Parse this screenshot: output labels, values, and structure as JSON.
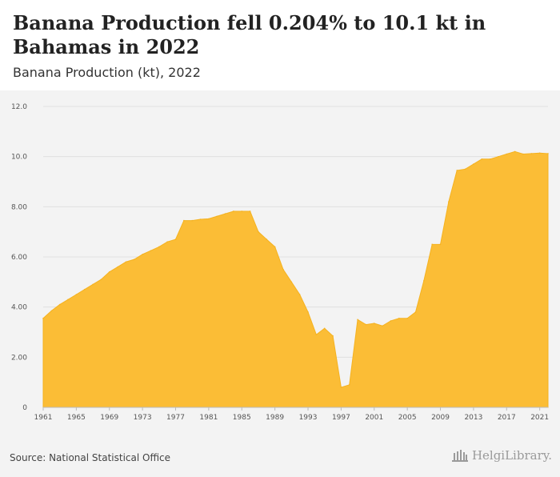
{
  "header": {
    "title": "Banana Production fell 0.204% to 10.1 kt in Bahamas in 2022",
    "subtitle": "Banana Production (kt), 2022"
  },
  "footer": {
    "source": "Source: National Statistical Office",
    "logo_text": "HelgiLibrary."
  },
  "colors": {
    "area_fill": "#fbbd36",
    "area_stroke": "#f5b21f",
    "grid": "#e0e0e0",
    "axis_text": "#555555",
    "logo": "#9a9a9a"
  },
  "chart_data": {
    "type": "area",
    "title": "Banana Production fell 0.204% to 10.1 kt in Bahamas in 2022",
    "subtitle": "Banana Production (kt), 2022",
    "ylim": [
      0,
      12
    ],
    "yticks": [
      0,
      2,
      4,
      6,
      8,
      10,
      12
    ],
    "ytick_labels": [
      "0",
      "2.00",
      "4.00",
      "6.00",
      "8.00",
      "10.0",
      "12.0"
    ],
    "xlim": [
      1961,
      2022
    ],
    "xticks": [
      1961,
      1965,
      1969,
      1973,
      1977,
      1981,
      1985,
      1989,
      1993,
      1997,
      2001,
      2005,
      2009,
      2013,
      2017,
      2021
    ],
    "grid": true,
    "series": [
      {
        "x": [
          1961,
          1962,
          1963,
          1964,
          1965,
          1966,
          1967,
          1968,
          1969,
          1970,
          1971,
          1972,
          1973,
          1974,
          1975,
          1976,
          1977,
          1978,
          1979,
          1980,
          1981,
          1982,
          1983,
          1984,
          1985,
          1986,
          1987,
          1988,
          1989,
          1990,
          1991,
          1992,
          1993,
          1994,
          1995,
          1996,
          1997,
          1998,
          1999,
          2000,
          2001,
          2002,
          2003,
          2004,
          2005,
          2006,
          2007,
          2008,
          2009,
          2010,
          2011,
          2012,
          2013,
          2014,
          2015,
          2016,
          2017,
          2018,
          2019,
          2020,
          2021,
          2022
        ],
        "values": [
          3.55,
          3.85,
          4.1,
          4.3,
          4.5,
          4.7,
          4.9,
          5.1,
          5.4,
          5.6,
          5.8,
          5.9,
          6.1,
          6.25,
          6.4,
          6.6,
          6.7,
          7.45,
          7.45,
          7.5,
          7.52,
          7.62,
          7.72,
          7.82,
          7.82,
          7.82,
          7.0,
          6.7,
          6.4,
          5.5,
          5.0,
          4.5,
          3.8,
          2.9,
          3.15,
          2.85,
          0.8,
          0.9,
          3.5,
          3.3,
          3.35,
          3.25,
          3.45,
          3.55,
          3.55,
          3.8,
          5.05,
          6.5,
          6.5,
          8.2,
          9.45,
          9.5,
          9.7,
          9.9,
          9.9,
          10.0,
          10.1,
          10.2,
          10.1,
          10.12,
          10.14,
          10.12
        ]
      }
    ]
  }
}
